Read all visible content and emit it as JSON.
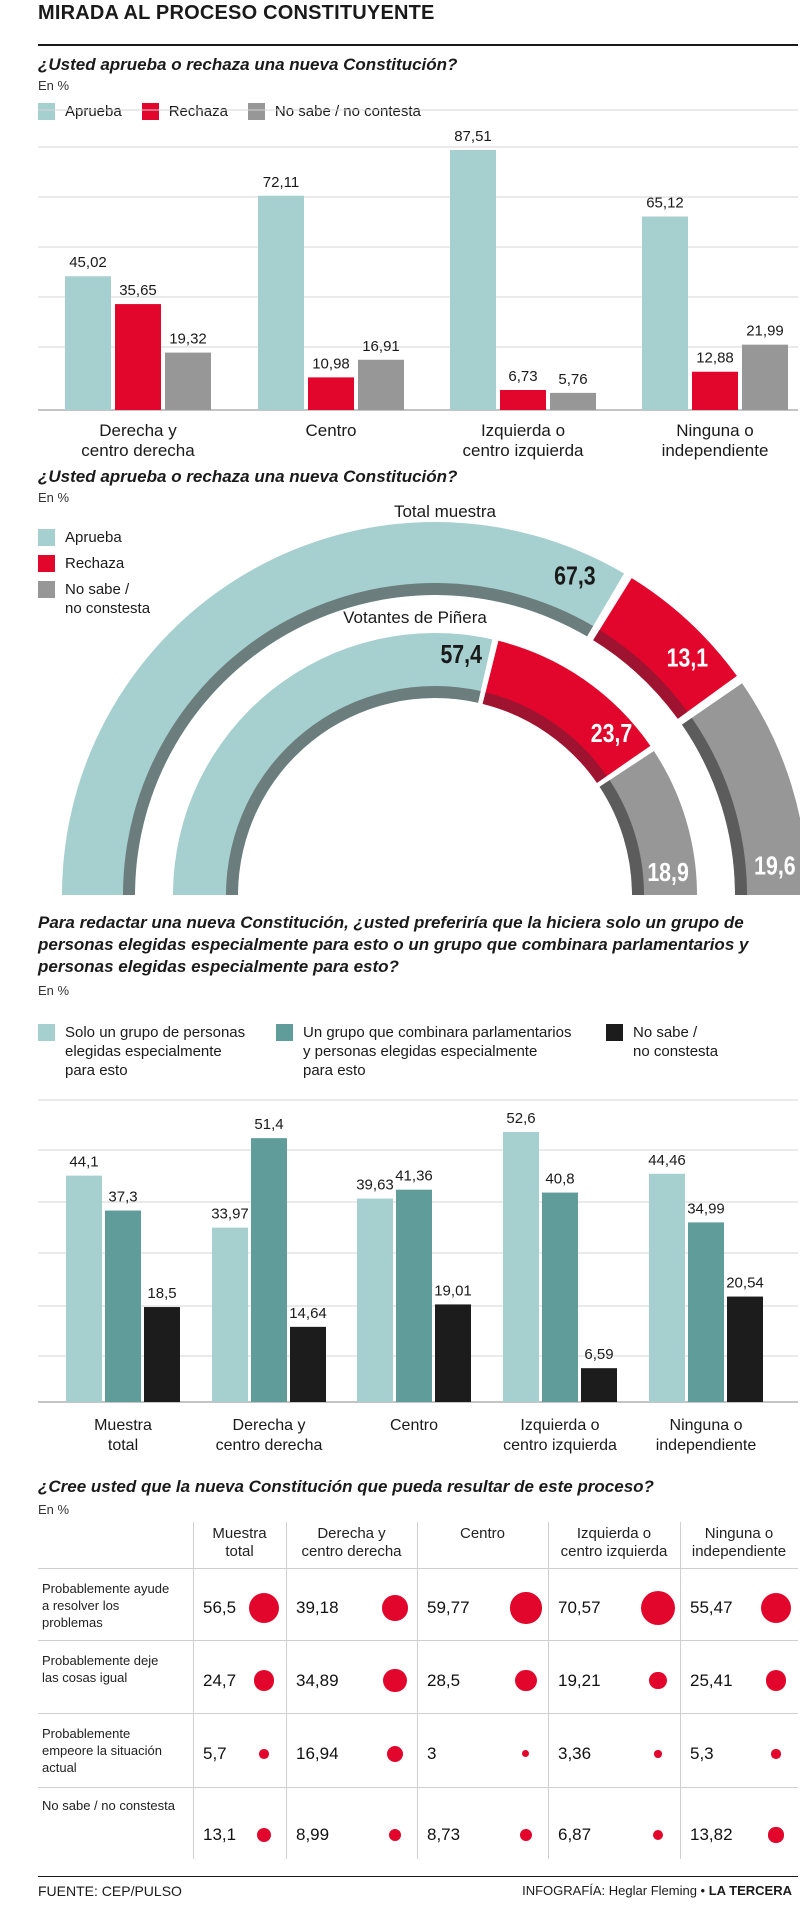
{
  "header": {
    "title": "MIRADA AL PROCESO CONSTITUYENTE"
  },
  "colors": {
    "aprueba": "#a6cfcf",
    "rechaza": "#e2062c",
    "nosabe": "#979797",
    "teal_dark": "#5f9c9a",
    "black": "#1c1c1c",
    "dot": "#e2062c"
  },
  "section1": {
    "question": "¿Usted aprueba o rechaza una nueva Constitución?",
    "unit": "En %",
    "legend": [
      "Aprueba",
      "Rechaza",
      "No sabe / no contesta"
    ],
    "group_labels": [
      [
        "Derecha y",
        "centro derecha"
      ],
      [
        "Centro"
      ],
      [
        "Izquierda o",
        "centro izquierda"
      ],
      [
        "Ninguna o",
        "independiente"
      ]
    ]
  },
  "section2": {
    "question": "¿Usted aprueba o rechaza una nueva Constitución?",
    "unit": "En %",
    "legend": [
      "Aprueba",
      "Rechaza",
      "No sabe /\nno constesta"
    ]
  },
  "section3": {
    "question": "Para redactar una nueva Constitución, ¿usted preferiría que la hiciera solo un grupo de personas elegidas especialmente para esto o un grupo que combinara parlamentarios y personas elegidas especialmente para esto?",
    "unit": "En %",
    "legend": [
      "Solo un grupo de personas\nelegidas especialmente\npara esto",
      "Un grupo que combinara parlamentarios\ny personas elegidas especialmente\npara esto",
      "No sabe /\nno constesta"
    ],
    "group_labels": [
      [
        "Muestra",
        "total"
      ],
      [
        "Derecha y",
        "centro derecha"
      ],
      [
        "Centro"
      ],
      [
        "Izquierda o",
        "centro izquierda"
      ],
      [
        "Ninguna o",
        "independiente"
      ]
    ]
  },
  "section4": {
    "question": "¿Cree usted que la nueva Constitución que pueda resultar de este proceso?",
    "unit": "En %",
    "columns": [
      "Muestra\ntotal",
      "Derecha y\ncentro derecha",
      "Centro",
      "Izquierda o\ncentro izquierda",
      "Ninguna o\nindependiente"
    ],
    "rows": [
      {
        "label": "Probablemente ayude\na resolver los\nproblemas",
        "values": [
          "56,5",
          "39,18",
          "59,77",
          "70,57",
          "55,47"
        ],
        "num": [
          56.5,
          39.18,
          59.77,
          70.57,
          55.47
        ]
      },
      {
        "label": "Probablemente deje\nlas cosas igual",
        "values": [
          "24,7",
          "34,89",
          "28,5",
          "19,21",
          "25,41"
        ],
        "num": [
          24.7,
          34.89,
          28.5,
          19.21,
          25.41
        ]
      },
      {
        "label": "Probablemente\nempeore la situación\nactual",
        "values": [
          "5,7",
          "16,94",
          "3",
          "3,36",
          "5,3"
        ],
        "num": [
          5.7,
          16.94,
          3,
          3.36,
          5.3
        ]
      },
      {
        "label": "No sabe / no constesta",
        "values": [
          "13,1",
          "8,99",
          "8,73",
          "6,87",
          "13,82"
        ],
        "num": [
          13.1,
          8.99,
          8.73,
          6.87,
          13.82
        ]
      }
    ]
  },
  "footer": {
    "source": "FUENTE: CEP/PULSO",
    "credit_prefix": "INFOGRAFÍA: Heglar Fleming • ",
    "credit_brand": "LA TERCERA"
  },
  "chart_data": [
    {
      "type": "bar",
      "title": "¿Usted aprueba o rechaza una nueva Constitución?",
      "ylabel": "En %",
      "categories": [
        "Derecha y centro derecha",
        "Centro",
        "Izquierda o centro izquierda",
        "Ninguna o independiente"
      ],
      "series": [
        {
          "name": "Aprueba",
          "values": [
            45.02,
            72.11,
            87.51,
            65.12
          ],
          "labels": [
            "45,02",
            "72,11",
            "87,51",
            "65,12"
          ]
        },
        {
          "name": "Rechaza",
          "values": [
            35.65,
            10.98,
            6.73,
            12.88
          ],
          "labels": [
            "35,65",
            "10,98",
            "6,73",
            "12,88"
          ]
        },
        {
          "name": "No sabe / no contesta",
          "values": [
            19.32,
            16.91,
            5.76,
            21.99
          ],
          "labels": [
            "19,32",
            "16,91",
            "5,76",
            "21,99"
          ]
        }
      ],
      "ylim": [
        0,
        100
      ],
      "grid": true,
      "legend": "top-left"
    },
    {
      "type": "pie",
      "title": "¿Usted aprueba o rechaza una nueva Constitución?",
      "rings": [
        {
          "name": "Total muestra",
          "values": [
            67.3,
            13.1,
            19.6
          ],
          "labels": [
            "67,3",
            "13,1",
            "19,6"
          ]
        },
        {
          "name": "Votantes de Piñera",
          "values": [
            57.4,
            23.7,
            18.9
          ],
          "labels": [
            "57,4",
            "23,7",
            "18,9"
          ]
        }
      ],
      "categories": [
        "Aprueba",
        "Rechaza",
        "No sabe / no constesta"
      ],
      "legend": "top-left"
    },
    {
      "type": "bar",
      "title": "Para redactar una nueva Constitución, ¿usted preferiría que la hiciera solo un grupo de personas elegidas especialmente para esto o un grupo que combinara parlamentarios y personas elegidas especialmente para esto?",
      "ylabel": "En %",
      "categories": [
        "Muestra total",
        "Derecha y centro derecha",
        "Centro",
        "Izquierda o centro izquierda",
        "Ninguna o independiente"
      ],
      "series": [
        {
          "name": "Solo un grupo de personas elegidas especialmente para esto",
          "values": [
            44.1,
            33.97,
            39.63,
            52.6,
            44.46
          ],
          "labels": [
            "44,1",
            "33,97",
            "39,63",
            "52,6",
            "44,46"
          ]
        },
        {
          "name": "Un grupo que combinara parlamentarios y personas elegidas especialmente para esto",
          "values": [
            37.3,
            51.4,
            41.36,
            40.8,
            34.99
          ],
          "labels": [
            "37,3",
            "51,4",
            "41,36",
            "40,8",
            "34,99"
          ]
        },
        {
          "name": "No sabe / no constesta",
          "values": [
            18.5,
            14.64,
            19.01,
            6.59,
            20.54
          ],
          "labels": [
            "18,5",
            "14,64",
            "19,01",
            "6,59",
            "20,54"
          ]
        }
      ],
      "ylim": [
        0,
        60
      ],
      "grid": true,
      "legend": "top"
    },
    {
      "type": "table",
      "title": "¿Cree usted que la nueva Constitución que pueda resultar de este proceso?",
      "columns": [
        "Muestra total",
        "Derecha y centro derecha",
        "Centro",
        "Izquierda o centro izquierda",
        "Ninguna o independiente"
      ],
      "rows": [
        "Probablemente ayude a resolver los problemas",
        "Probablemente deje las cosas igual",
        "Probablemente empeore la situación actual",
        "No sabe / no constesta"
      ],
      "values": [
        [
          56.5,
          39.18,
          59.77,
          70.57,
          55.47
        ],
        [
          24.7,
          34.89,
          28.5,
          19.21,
          25.41
        ],
        [
          5.7,
          16.94,
          3,
          3.36,
          5.3
        ],
        [
          13.1,
          8.99,
          8.73,
          6.87,
          13.82
        ]
      ]
    }
  ]
}
